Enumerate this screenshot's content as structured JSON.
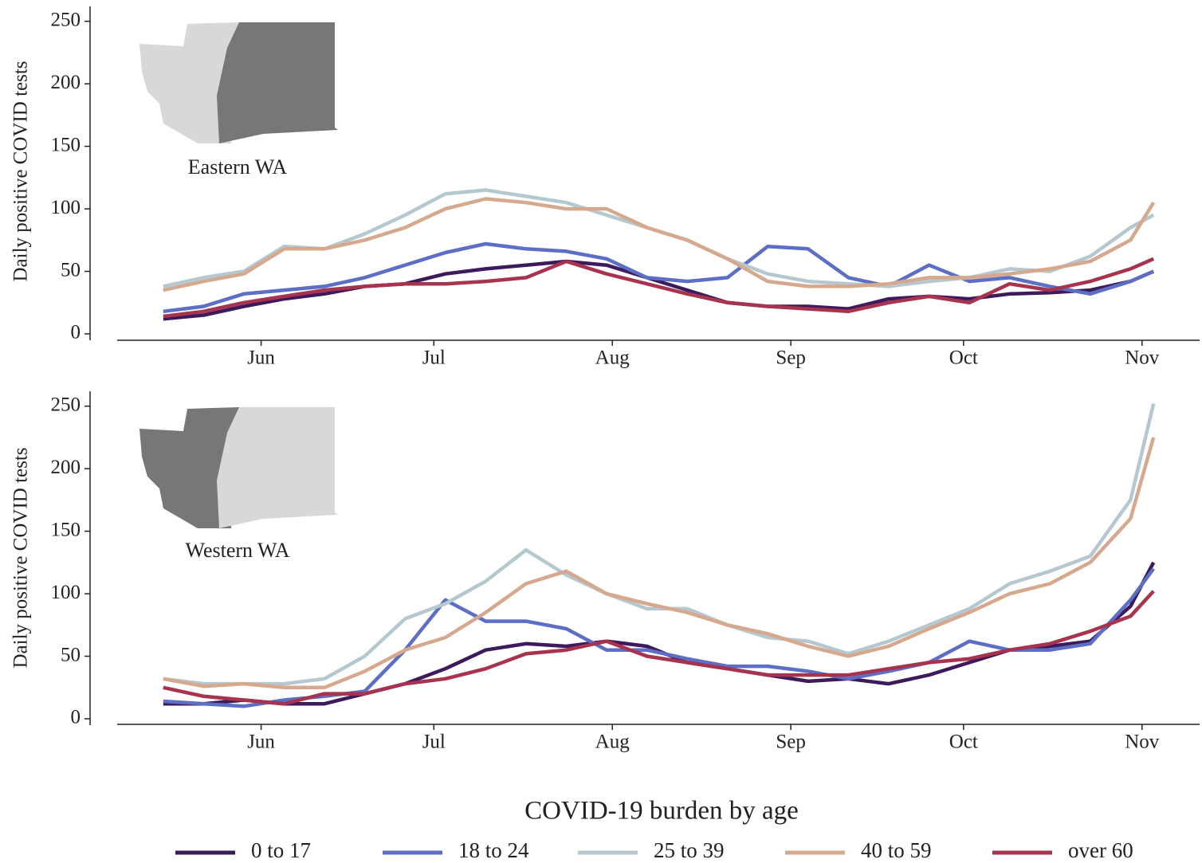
{
  "chart_data": [
    {
      "type": "line",
      "ylabel": "Daily positive COVID tests",
      "annotation": "Eastern WA",
      "legend_title": "COVID-19 burden by age",
      "x": [
        136,
        143,
        150,
        157,
        164,
        171,
        178,
        185,
        192,
        199,
        206,
        213,
        220,
        227,
        234,
        241,
        248,
        255,
        262,
        269,
        276,
        283,
        290,
        297,
        304,
        308
      ],
      "xlim": [
        128,
        316
      ],
      "xticks": [
        {
          "value": 153,
          "label": "Jun"
        },
        {
          "value": 183,
          "label": "Jul"
        },
        {
          "value": 214,
          "label": "Aug"
        },
        {
          "value": 245,
          "label": "Sep"
        },
        {
          "value": 275,
          "label": "Oct"
        },
        {
          "value": 306,
          "label": "Nov"
        }
      ],
      "ylim": [
        0,
        260
      ],
      "yticks": [
        0,
        50,
        100,
        150,
        200,
        250
      ],
      "series": [
        {
          "name": "0 to 17",
          "color": "#3d1a5c",
          "values": [
            12,
            15,
            22,
            28,
            32,
            38,
            40,
            48,
            52,
            55,
            58,
            55,
            45,
            35,
            25,
            22,
            22,
            20,
            28,
            30,
            28,
            32,
            33,
            35,
            42,
            50
          ]
        },
        {
          "name": "18 to 24",
          "color": "#5d6fc4",
          "values": [
            18,
            22,
            32,
            35,
            38,
            45,
            55,
            65,
            72,
            68,
            66,
            60,
            45,
            42,
            45,
            70,
            68,
            45,
            38,
            55,
            42,
            45,
            38,
            32,
            42,
            50
          ]
        },
        {
          "name": "25 to 39",
          "color": "#b5c8d0",
          "values": [
            38,
            45,
            50,
            70,
            68,
            80,
            95,
            112,
            115,
            110,
            105,
            95,
            85,
            75,
            60,
            48,
            42,
            40,
            38,
            42,
            45,
            52,
            50,
            62,
            85,
            95
          ]
        },
        {
          "name": "40 to 59",
          "color": "#d6a98e",
          "values": [
            35,
            42,
            48,
            68,
            68,
            75,
            85,
            100,
            108,
            105,
            100,
            100,
            85,
            75,
            60,
            42,
            38,
            38,
            40,
            45,
            45,
            48,
            52,
            58,
            75,
            105
          ]
        },
        {
          "name": "over 60",
          "color": "#a8334f",
          "values": [
            14,
            18,
            25,
            30,
            35,
            38,
            40,
            40,
            42,
            45,
            58,
            48,
            40,
            32,
            25,
            22,
            20,
            18,
            25,
            30,
            25,
            40,
            35,
            42,
            52,
            60
          ]
        }
      ]
    },
    {
      "type": "line",
      "ylabel": "Daily positive COVID tests",
      "annotation": "Western WA",
      "x": [
        136,
        143,
        150,
        157,
        164,
        171,
        178,
        185,
        192,
        199,
        206,
        213,
        220,
        227,
        234,
        241,
        248,
        255,
        262,
        269,
        276,
        283,
        290,
        297,
        304,
        308
      ],
      "xlim": [
        128,
        316
      ],
      "xticks": [
        {
          "value": 153,
          "label": "Jun"
        },
        {
          "value": 183,
          "label": "Jul"
        },
        {
          "value": 214,
          "label": "Aug"
        },
        {
          "value": 245,
          "label": "Sep"
        },
        {
          "value": 275,
          "label": "Oct"
        },
        {
          "value": 306,
          "label": "Nov"
        }
      ],
      "ylim": [
        0,
        260
      ],
      "yticks": [
        0,
        50,
        100,
        150,
        200,
        250
      ],
      "series": [
        {
          "color": "#3d1a5c",
          "values": [
            12,
            12,
            15,
            12,
            12,
            20,
            28,
            40,
            55,
            60,
            58,
            62,
            58,
            45,
            40,
            35,
            30,
            32,
            28,
            35,
            45,
            55,
            58,
            62,
            90,
            125
          ]
        },
        {
          "color": "#5d6fc4",
          "values": [
            14,
            12,
            10,
            15,
            18,
            22,
            55,
            95,
            78,
            78,
            72,
            55,
            55,
            48,
            42,
            42,
            38,
            32,
            38,
            45,
            62,
            55,
            55,
            60,
            95,
            120
          ]
        },
        {
          "color": "#b5c8d0",
          "values": [
            32,
            28,
            28,
            28,
            32,
            50,
            80,
            92,
            110,
            135,
            115,
            100,
            88,
            88,
            75,
            65,
            62,
            52,
            62,
            75,
            88,
            108,
            118,
            130,
            175,
            252
          ]
        },
        {
          "color": "#d6a98e",
          "values": [
            32,
            26,
            28,
            25,
            25,
            38,
            55,
            65,
            85,
            108,
            118,
            100,
            92,
            85,
            75,
            68,
            58,
            50,
            58,
            72,
            85,
            100,
            108,
            125,
            160,
            225
          ]
        },
        {
          "color": "#a8334f",
          "values": [
            25,
            18,
            15,
            12,
            20,
            20,
            28,
            32,
            40,
            52,
            55,
            62,
            50,
            45,
            40,
            35,
            35,
            35,
            40,
            45,
            48,
            55,
            60,
            70,
            82,
            102
          ]
        }
      ]
    }
  ]
}
